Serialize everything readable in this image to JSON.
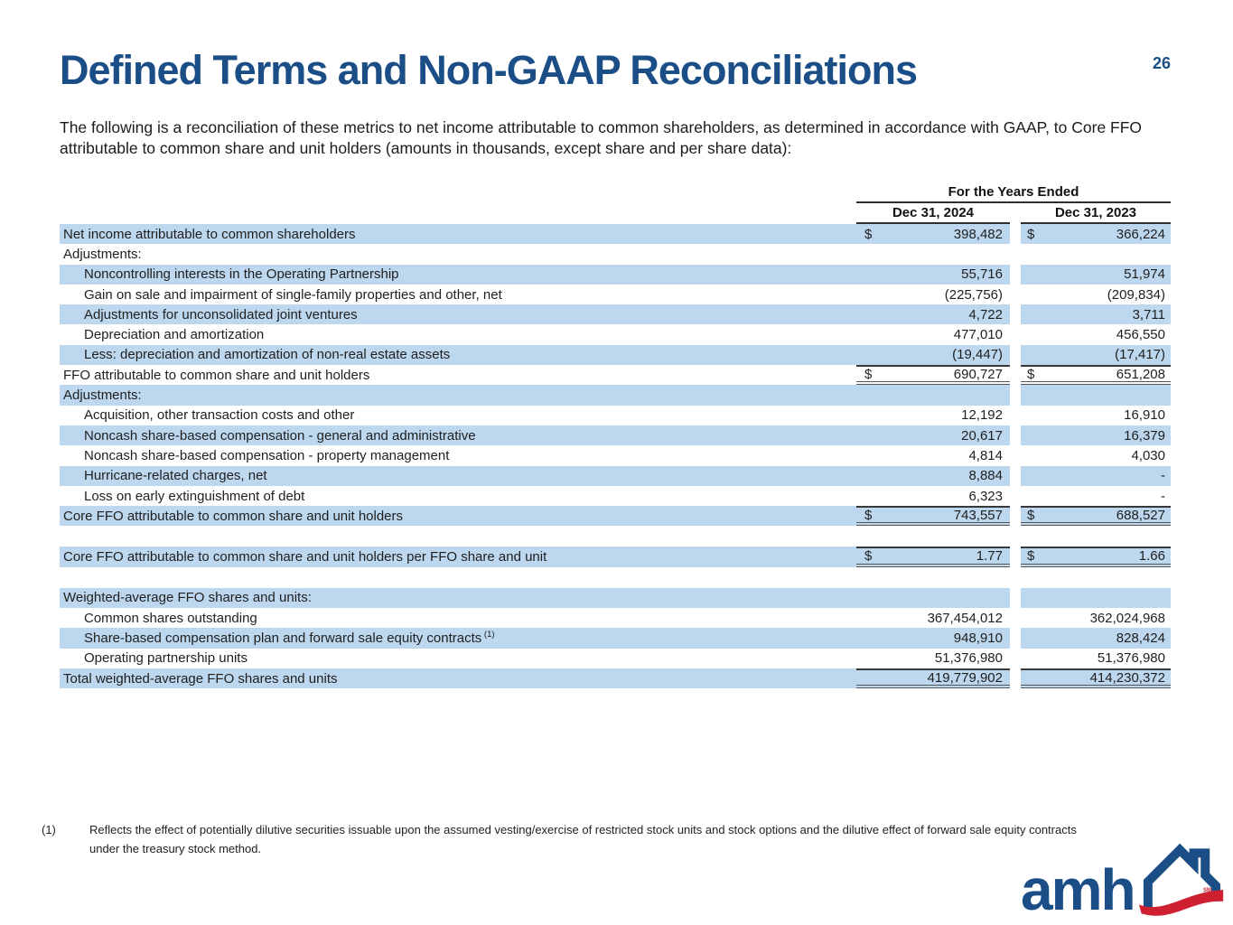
{
  "page": {
    "title": "Defined Terms and Non-GAAP Reconciliations",
    "page_number": "26",
    "intro": "The following is a reconciliation of these metrics to net income attributable to common shareholders, as determined in accordance with GAAP, to Core FFO attributable to common share and unit holders (amounts in thousands, except share and per share data):"
  },
  "table": {
    "header": {
      "group": "For the Years Ended",
      "col1": "Dec 31, 2024",
      "col2": "Dec 31, 2023"
    },
    "rows": [
      {
        "label": "Net income attributable to common shareholders",
        "d1": "$",
        "v1": "398,482",
        "d2": "$",
        "v2": "366,224",
        "shaded": true
      },
      {
        "label": "Adjustments:"
      },
      {
        "label": "Noncontrolling interests in the Operating Partnership",
        "v1": "55,716",
        "v2": "51,974",
        "indent": true,
        "shaded": true
      },
      {
        "label": "Gain on sale and impairment of single-family properties and other, net",
        "v1": "(225,756)",
        "v2": "(209,834)",
        "indent": true
      },
      {
        "label": "Adjustments for unconsolidated joint ventures",
        "v1": "4,722",
        "v2": "3,711",
        "indent": true,
        "shaded": true
      },
      {
        "label": "Depreciation and amortization",
        "v1": "477,010",
        "v2": "456,550",
        "indent": true
      },
      {
        "label": "Less: depreciation and amortization of non-real estate assets",
        "v1": "(19,447)",
        "v2": "(17,417)",
        "indent": true,
        "shaded": true
      },
      {
        "label": "FFO attributable to common share and unit holders",
        "d1": "$",
        "v1": "690,727",
        "d2": "$",
        "v2": "651,208",
        "total": true
      },
      {
        "label": "Adjustments:",
        "shaded": true
      },
      {
        "label": "Acquisition, other transaction costs and other",
        "v1": "12,192",
        "v2": "16,910",
        "indent": true
      },
      {
        "label": "Noncash share-based compensation - general and administrative",
        "v1": "20,617",
        "v2": "16,379",
        "indent": true,
        "shaded": true
      },
      {
        "label": "Noncash share-based compensation - property management",
        "v1": "4,814",
        "v2": "4,030",
        "indent": true
      },
      {
        "label": "Hurricane-related charges, net",
        "v1": "8,884",
        "v2": "-",
        "indent": true,
        "shaded": true
      },
      {
        "label": "Loss on early extinguishment of debt",
        "v1": "6,323",
        "v2": "-",
        "indent": true
      },
      {
        "label": "Core FFO attributable to common share and unit holders",
        "d1": "$",
        "v1": "743,557",
        "d2": "$",
        "v2": "688,527",
        "shaded": true,
        "total": true
      },
      {
        "spacer": true
      },
      {
        "label": "Core FFO attributable to common share and unit holders per FFO share and unit",
        "d1": "$",
        "v1": "1.77",
        "d2": "$",
        "v2": "1.66",
        "shaded": true,
        "total": true
      },
      {
        "spacer": true
      },
      {
        "label": "Weighted-average FFO shares and units:",
        "shaded": true
      },
      {
        "label": "Common shares outstanding",
        "v1": "367,454,012",
        "v2": "362,024,968",
        "indent": true
      },
      {
        "label": "Share-based compensation plan and forward sale equity contracts",
        "sup": "(1)",
        "v1": "948,910",
        "v2": "828,424",
        "indent": true,
        "shaded": true
      },
      {
        "label": "Operating partnership units",
        "v1": "51,376,980",
        "v2": "51,376,980",
        "indent": true
      },
      {
        "label": "Total weighted-average FFO shares and units",
        "v1": "419,779,902",
        "v2": "414,230,372",
        "shaded": true,
        "total": true
      }
    ]
  },
  "footnote": {
    "marker": "(1)",
    "text": "Reflects the effect of potentially dilutive securities issuable upon the assumed vesting/exercise of restricted stock units and stock options and the dilutive effect of forward sale equity contracts under the treasury stock method."
  },
  "logo": {
    "text": "amh",
    "sm": "SM",
    "house_icon": "amh-house-icon"
  },
  "colors": {
    "accent_blue": "#1B4E87",
    "stripe_blue": "#BDD7EE",
    "logo_red": "#CE2030",
    "rule_dark": "#383838",
    "rule_double": "#555555"
  }
}
